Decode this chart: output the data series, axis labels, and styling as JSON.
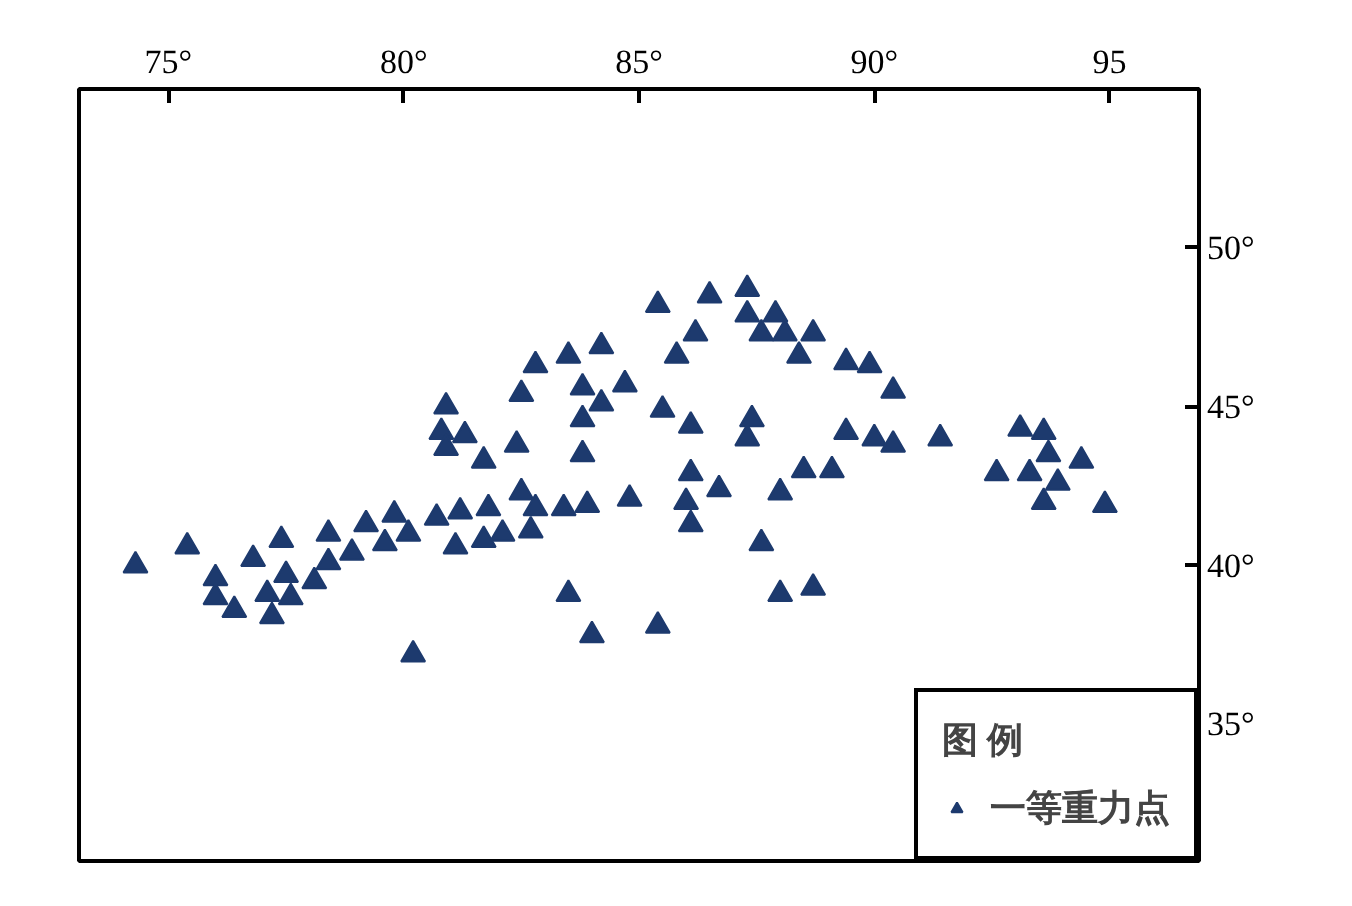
{
  "chart_data": {
    "type": "scatter",
    "marker": "triangle",
    "legend": "bottom right",
    "legend_title": "图 例",
    "xlim": [
      73.1,
      96.9
    ],
    "ylim": [
      30.7,
      55.0
    ],
    "xticks": [
      {
        "value": 75,
        "label": "75°"
      },
      {
        "value": 80,
        "label": "80°"
      },
      {
        "value": 85,
        "label": "85°"
      },
      {
        "value": 90,
        "label": "90°"
      },
      95
    ],
    "yticks": [
      {
        "value": 35,
        "label": "35°"
      },
      {
        "value": 40,
        "label": "40°"
      },
      {
        "value": 45,
        "label": "45°"
      },
      {
        "value": 50,
        "label": "50°"
      }
    ],
    "series": [
      {
        "name": "一等重力点",
        "color": "#1d3a6e",
        "x": [
          74.3,
          75.4,
          76.0,
          76.0,
          76.4,
          76.8,
          77.1,
          77.2,
          77.4,
          77.5,
          77.6,
          78.1,
          78.4,
          78.4,
          78.9,
          79.2,
          79.6,
          79.8,
          80.1,
          80.2,
          80.7,
          80.9,
          80.8,
          80.9,
          81.1,
          81.2,
          81.3,
          81.7,
          81.7,
          81.8,
          82.1,
          82.5,
          82.4,
          82.5,
          82.7,
          82.8,
          82.8,
          83.5,
          83.4,
          83.5,
          83.8,
          83.8,
          83.8,
          83.9,
          84.2,
          84.2,
          84.0,
          84.7,
          84.8,
          85.4,
          85.5,
          85.4,
          85.8,
          86.1,
          86.1,
          86.0,
          86.1,
          86.2,
          86.5,
          86.7,
          87.3,
          87.3,
          87.4,
          87.3,
          87.6,
          87.9,
          87.6,
          88.1,
          88.0,
          88.4,
          88.0,
          88.7,
          88.5,
          88.7,
          89.4,
          89.1,
          89.4,
          89.9,
          90.0,
          90.4,
          90.4,
          91.4,
          92.6,
          93.1,
          93.6,
          93.3,
          93.7,
          93.6,
          93.9,
          94.4,
          94.9
        ],
        "values": [
          40.0,
          40.6,
          39.6,
          39.0,
          38.6,
          40.2,
          39.1,
          38.4,
          40.8,
          39.7,
          39.0,
          39.5,
          41.0,
          40.1,
          40.4,
          41.3,
          40.7,
          41.6,
          41.0,
          37.2,
          41.5,
          45.0,
          44.2,
          43.7,
          40.6,
          41.7,
          44.1,
          43.3,
          40.8,
          41.8,
          41.0,
          45.4,
          43.8,
          42.3,
          41.1,
          46.3,
          41.8,
          46.6,
          41.8,
          39.1,
          45.6,
          44.6,
          43.5,
          41.9,
          46.9,
          45.1,
          37.8,
          45.7,
          42.1,
          48.2,
          44.9,
          38.1,
          46.6,
          44.4,
          42.9,
          42.0,
          41.3,
          47.3,
          48.5,
          42.4,
          48.7,
          47.9,
          44.6,
          44.0,
          40.7,
          47.9,
          47.3,
          47.3,
          42.3,
          46.6,
          39.1,
          47.3,
          43.0,
          39.3,
          46.4,
          43.0,
          44.2,
          46.3,
          44.0,
          45.5,
          43.8,
          44.0,
          42.9,
          44.3,
          44.2,
          42.9,
          43.5,
          42.0,
          42.6,
          43.3,
          41.9
        ]
      }
    ]
  }
}
